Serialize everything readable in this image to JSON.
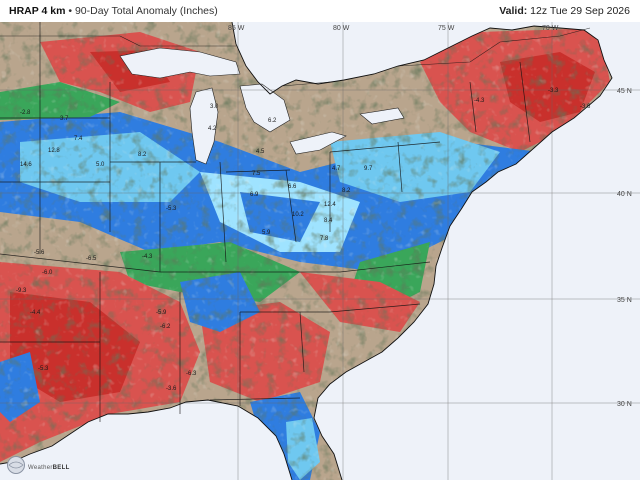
{
  "header": {
    "product": "HRAP 4 km",
    "separator": "•",
    "field": "90-Day Total Anomaly (Inches)",
    "valid_label": "Valid:",
    "valid_time": "12z Tue 29 Sep 2026"
  },
  "graticule": {
    "longitudes": [
      "85 W",
      "80 W",
      "75 W",
      "70 W"
    ],
    "latitudes": [
      "45 N",
      "40 N",
      "35 N",
      "30 N"
    ]
  },
  "anomaly_labels": [
    "7.5",
    "6.6",
    "6.9",
    "10.2",
    "12.4",
    "8.4",
    "7.8",
    "9.7",
    "4.7",
    "8.2",
    "12.8",
    "7.4",
    "5.0",
    "14.6",
    "3.7",
    "4.2",
    "3.0",
    "8.2",
    "-5.6",
    "-6.0",
    "-9.3",
    "-6.5",
    "-5.9",
    "-6.2",
    "-5.3",
    "-3.6",
    "-6.3",
    "-4.3",
    "-5.3",
    "-4.4",
    "-4.3",
    "-3.6",
    "-3.3",
    "-2.8",
    "5.9",
    "4.5",
    "6.2"
  ],
  "colors": {
    "strong_wet": "#2f7de0",
    "wet": "#6fc8f0",
    "very_wet": "#9fe3ff",
    "slight_wet": "#3aa65a",
    "near_normal": "#9b8f7a",
    "dry": "#d9534f",
    "very_dry": "#c9302c",
    "ocean": "#eef2f9"
  },
  "logo": {
    "brand_left": "Weather",
    "brand_right": "BELL"
  }
}
